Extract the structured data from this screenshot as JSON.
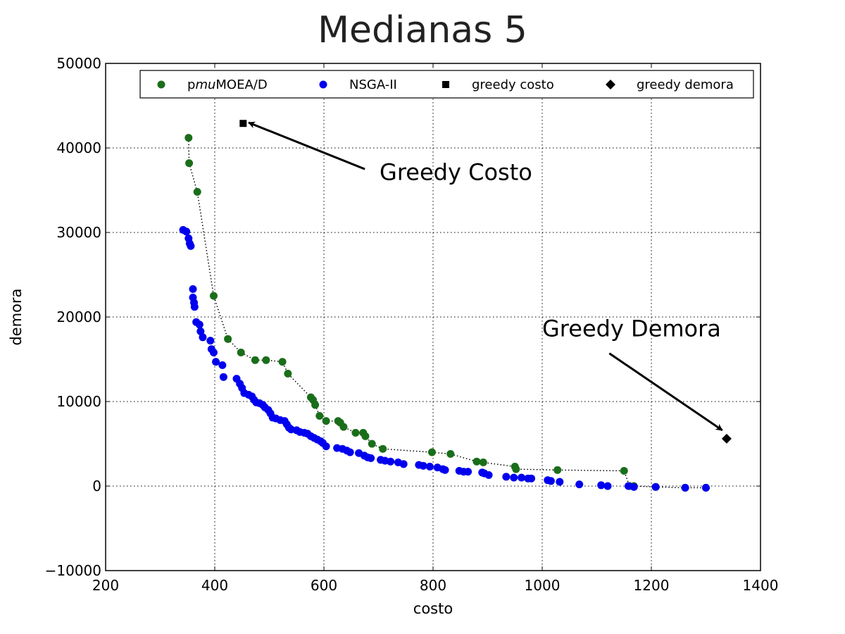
{
  "chart_data": {
    "type": "scatter",
    "title": "Medianas 5",
    "xlabel": "costo",
    "ylabel": "demora",
    "xlim": [
      200,
      1400
    ],
    "ylim": [
      -10000,
      50000
    ],
    "xticks": [
      200,
      400,
      600,
      800,
      1000,
      1200,
      1400
    ],
    "yticks": [
      -10000,
      0,
      10000,
      20000,
      30000,
      40000,
      50000
    ],
    "xtick_labels": [
      "200",
      "400",
      "600",
      "800",
      "1000",
      "1200",
      "1400"
    ],
    "ytick_labels": [
      "−10000",
      "0",
      "10000",
      "20000",
      "30000",
      "40000",
      "50000"
    ],
    "grid": true,
    "legend_position": "top",
    "series": [
      {
        "name": "pmuMOEA/D",
        "legend_parts": [
          "p",
          "mu",
          "MOEA/D"
        ],
        "color": "#1a6e1a",
        "marker": "circle",
        "connect": "dotted",
        "points": [
          [
            352,
            41200
          ],
          [
            353,
            38200
          ],
          [
            368,
            34800
          ],
          [
            398,
            22500
          ],
          [
            424,
            17400
          ],
          [
            448,
            15800
          ],
          [
            474,
            14900
          ],
          [
            494,
            14900
          ],
          [
            524,
            14700
          ],
          [
            534,
            13300
          ],
          [
            576,
            10500
          ],
          [
            580,
            10200
          ],
          [
            584,
            9600
          ],
          [
            592,
            8300
          ],
          [
            604,
            7700
          ],
          [
            626,
            7700
          ],
          [
            630,
            7500
          ],
          [
            636,
            7000
          ],
          [
            658,
            6300
          ],
          [
            672,
            6300
          ],
          [
            676,
            5900
          ],
          [
            688,
            5000
          ],
          [
            708,
            4400
          ],
          [
            798,
            4000
          ],
          [
            832,
            3800
          ],
          [
            880,
            2900
          ],
          [
            892,
            2800
          ],
          [
            950,
            2300
          ],
          [
            952,
            2000
          ],
          [
            1028,
            1900
          ],
          [
            1150,
            1800
          ],
          [
            1160,
            0
          ],
          [
            1168,
            0
          ],
          [
            1208,
            -100
          ],
          [
            1262,
            -200
          ],
          [
            1300,
            -200
          ]
        ]
      },
      {
        "name": "NSGA-II",
        "color": "#0000ee",
        "marker": "circle",
        "points": [
          [
            342,
            30300
          ],
          [
            348,
            30100
          ],
          [
            352,
            29300
          ],
          [
            354,
            28700
          ],
          [
            356,
            28400
          ],
          [
            360,
            23300
          ],
          [
            360,
            22300
          ],
          [
            362,
            21700
          ],
          [
            363,
            21200
          ],
          [
            366,
            19400
          ],
          [
            372,
            19100
          ],
          [
            374,
            18300
          ],
          [
            378,
            17600
          ],
          [
            392,
            17200
          ],
          [
            394,
            16200
          ],
          [
            398,
            15800
          ],
          [
            402,
            14700
          ],
          [
            414,
            14300
          ],
          [
            416,
            12900
          ],
          [
            440,
            12700
          ],
          [
            446,
            12100
          ],
          [
            450,
            11600
          ],
          [
            454,
            11000
          ],
          [
            462,
            10800
          ],
          [
            468,
            10600
          ],
          [
            472,
            10200
          ],
          [
            476,
            9900
          ],
          [
            482,
            9800
          ],
          [
            488,
            9600
          ],
          [
            492,
            9300
          ],
          [
            498,
            9000
          ],
          [
            502,
            8600
          ],
          [
            506,
            8100
          ],
          [
            512,
            8000
          ],
          [
            520,
            7800
          ],
          [
            528,
            7700
          ],
          [
            532,
            7300
          ],
          [
            536,
            6900
          ],
          [
            540,
            6700
          ],
          [
            550,
            6600
          ],
          [
            556,
            6400
          ],
          [
            564,
            6300
          ],
          [
            570,
            6200
          ],
          [
            576,
            5900
          ],
          [
            582,
            5700
          ],
          [
            588,
            5500
          ],
          [
            594,
            5300
          ],
          [
            598,
            5100
          ],
          [
            604,
            4700
          ],
          [
            624,
            4500
          ],
          [
            634,
            4400
          ],
          [
            642,
            4200
          ],
          [
            648,
            4000
          ],
          [
            664,
            3900
          ],
          [
            674,
            3600
          ],
          [
            680,
            3400
          ],
          [
            686,
            3300
          ],
          [
            704,
            3100
          ],
          [
            712,
            3000
          ],
          [
            722,
            2900
          ],
          [
            736,
            2800
          ],
          [
            746,
            2600
          ],
          [
            774,
            2500
          ],
          [
            782,
            2400
          ],
          [
            794,
            2300
          ],
          [
            808,
            2200
          ],
          [
            818,
            2000
          ],
          [
            822,
            1900
          ],
          [
            848,
            1800
          ],
          [
            856,
            1700
          ],
          [
            864,
            1700
          ],
          [
            890,
            1600
          ],
          [
            894,
            1500
          ],
          [
            902,
            1300
          ],
          [
            934,
            1100
          ],
          [
            948,
            1000
          ],
          [
            962,
            1000
          ],
          [
            974,
            900
          ],
          [
            980,
            900
          ],
          [
            1010,
            700
          ],
          [
            1016,
            600
          ],
          [
            1032,
            500
          ],
          [
            1068,
            200
          ],
          [
            1108,
            100
          ],
          [
            1120,
            0
          ],
          [
            1158,
            0
          ],
          [
            1168,
            -100
          ],
          [
            1208,
            -100
          ],
          [
            1262,
            -200
          ],
          [
            1300,
            -200
          ]
        ]
      },
      {
        "name": "greedy costo",
        "color": "#000000",
        "marker": "square",
        "points": [
          [
            452,
            42900
          ]
        ]
      },
      {
        "name": "greedy demora",
        "color": "#000000",
        "marker": "diamond",
        "points": [
          [
            1338,
            5600
          ]
        ]
      }
    ],
    "annotations": [
      {
        "text": "Greedy Costo",
        "from": [
          675,
          37500
        ],
        "to": [
          462,
          43000
        ],
        "text_at": [
          702,
          36200
        ]
      },
      {
        "text": "Greedy Demora",
        "from": [
          1123,
          15700
        ],
        "to": [
          1330,
          6600
        ],
        "text_at": [
          1000,
          17700
        ]
      }
    ]
  }
}
